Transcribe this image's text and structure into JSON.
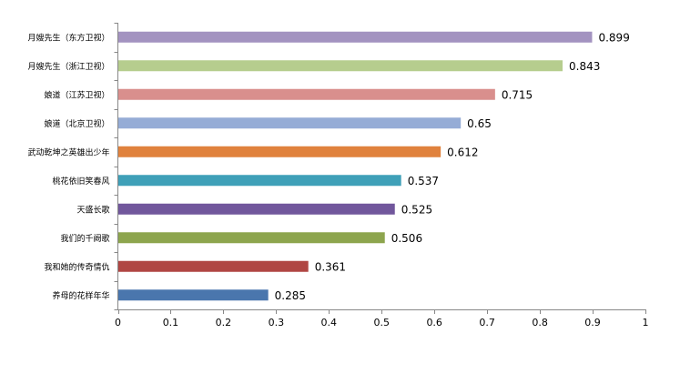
{
  "chart_data": {
    "type": "bar",
    "orientation": "horizontal",
    "categories": [
      "月嫂先生（东方卫视）",
      "月嫂先生（浙江卫视）",
      "娘道（江苏卫视）",
      "娘道（北京卫视）",
      "武动乾坤之英雄出少年",
      "桃花依旧笑春风",
      "天盛长歌",
      "我们的千阙歌",
      "我和她的传奇情仇",
      "养母的花样年华"
    ],
    "values": [
      0.899,
      0.843,
      0.715,
      0.65,
      0.612,
      0.537,
      0.525,
      0.506,
      0.361,
      0.285
    ],
    "value_labels": [
      "0.899",
      "0.843",
      "0.715",
      "0.65",
      "0.612",
      "0.537",
      "0.525",
      "0.506",
      "0.361",
      "0.285"
    ],
    "colors": [
      "#a393c0",
      "#b6cd8e",
      "#d98f8d",
      "#95acd6",
      "#e0823d",
      "#3fa0b8",
      "#71579c",
      "#8da54e",
      "#b04643",
      "#4a76ad"
    ],
    "xlim": [
      0,
      1
    ],
    "xticks": [
      "0",
      "0.1",
      "0.2",
      "0.3",
      "0.4",
      "0.5",
      "0.6",
      "0.7",
      "0.8",
      "0.9",
      "1"
    ],
    "title": "",
    "xlabel": "",
    "ylabel": "",
    "grid": false,
    "legend": "none"
  }
}
